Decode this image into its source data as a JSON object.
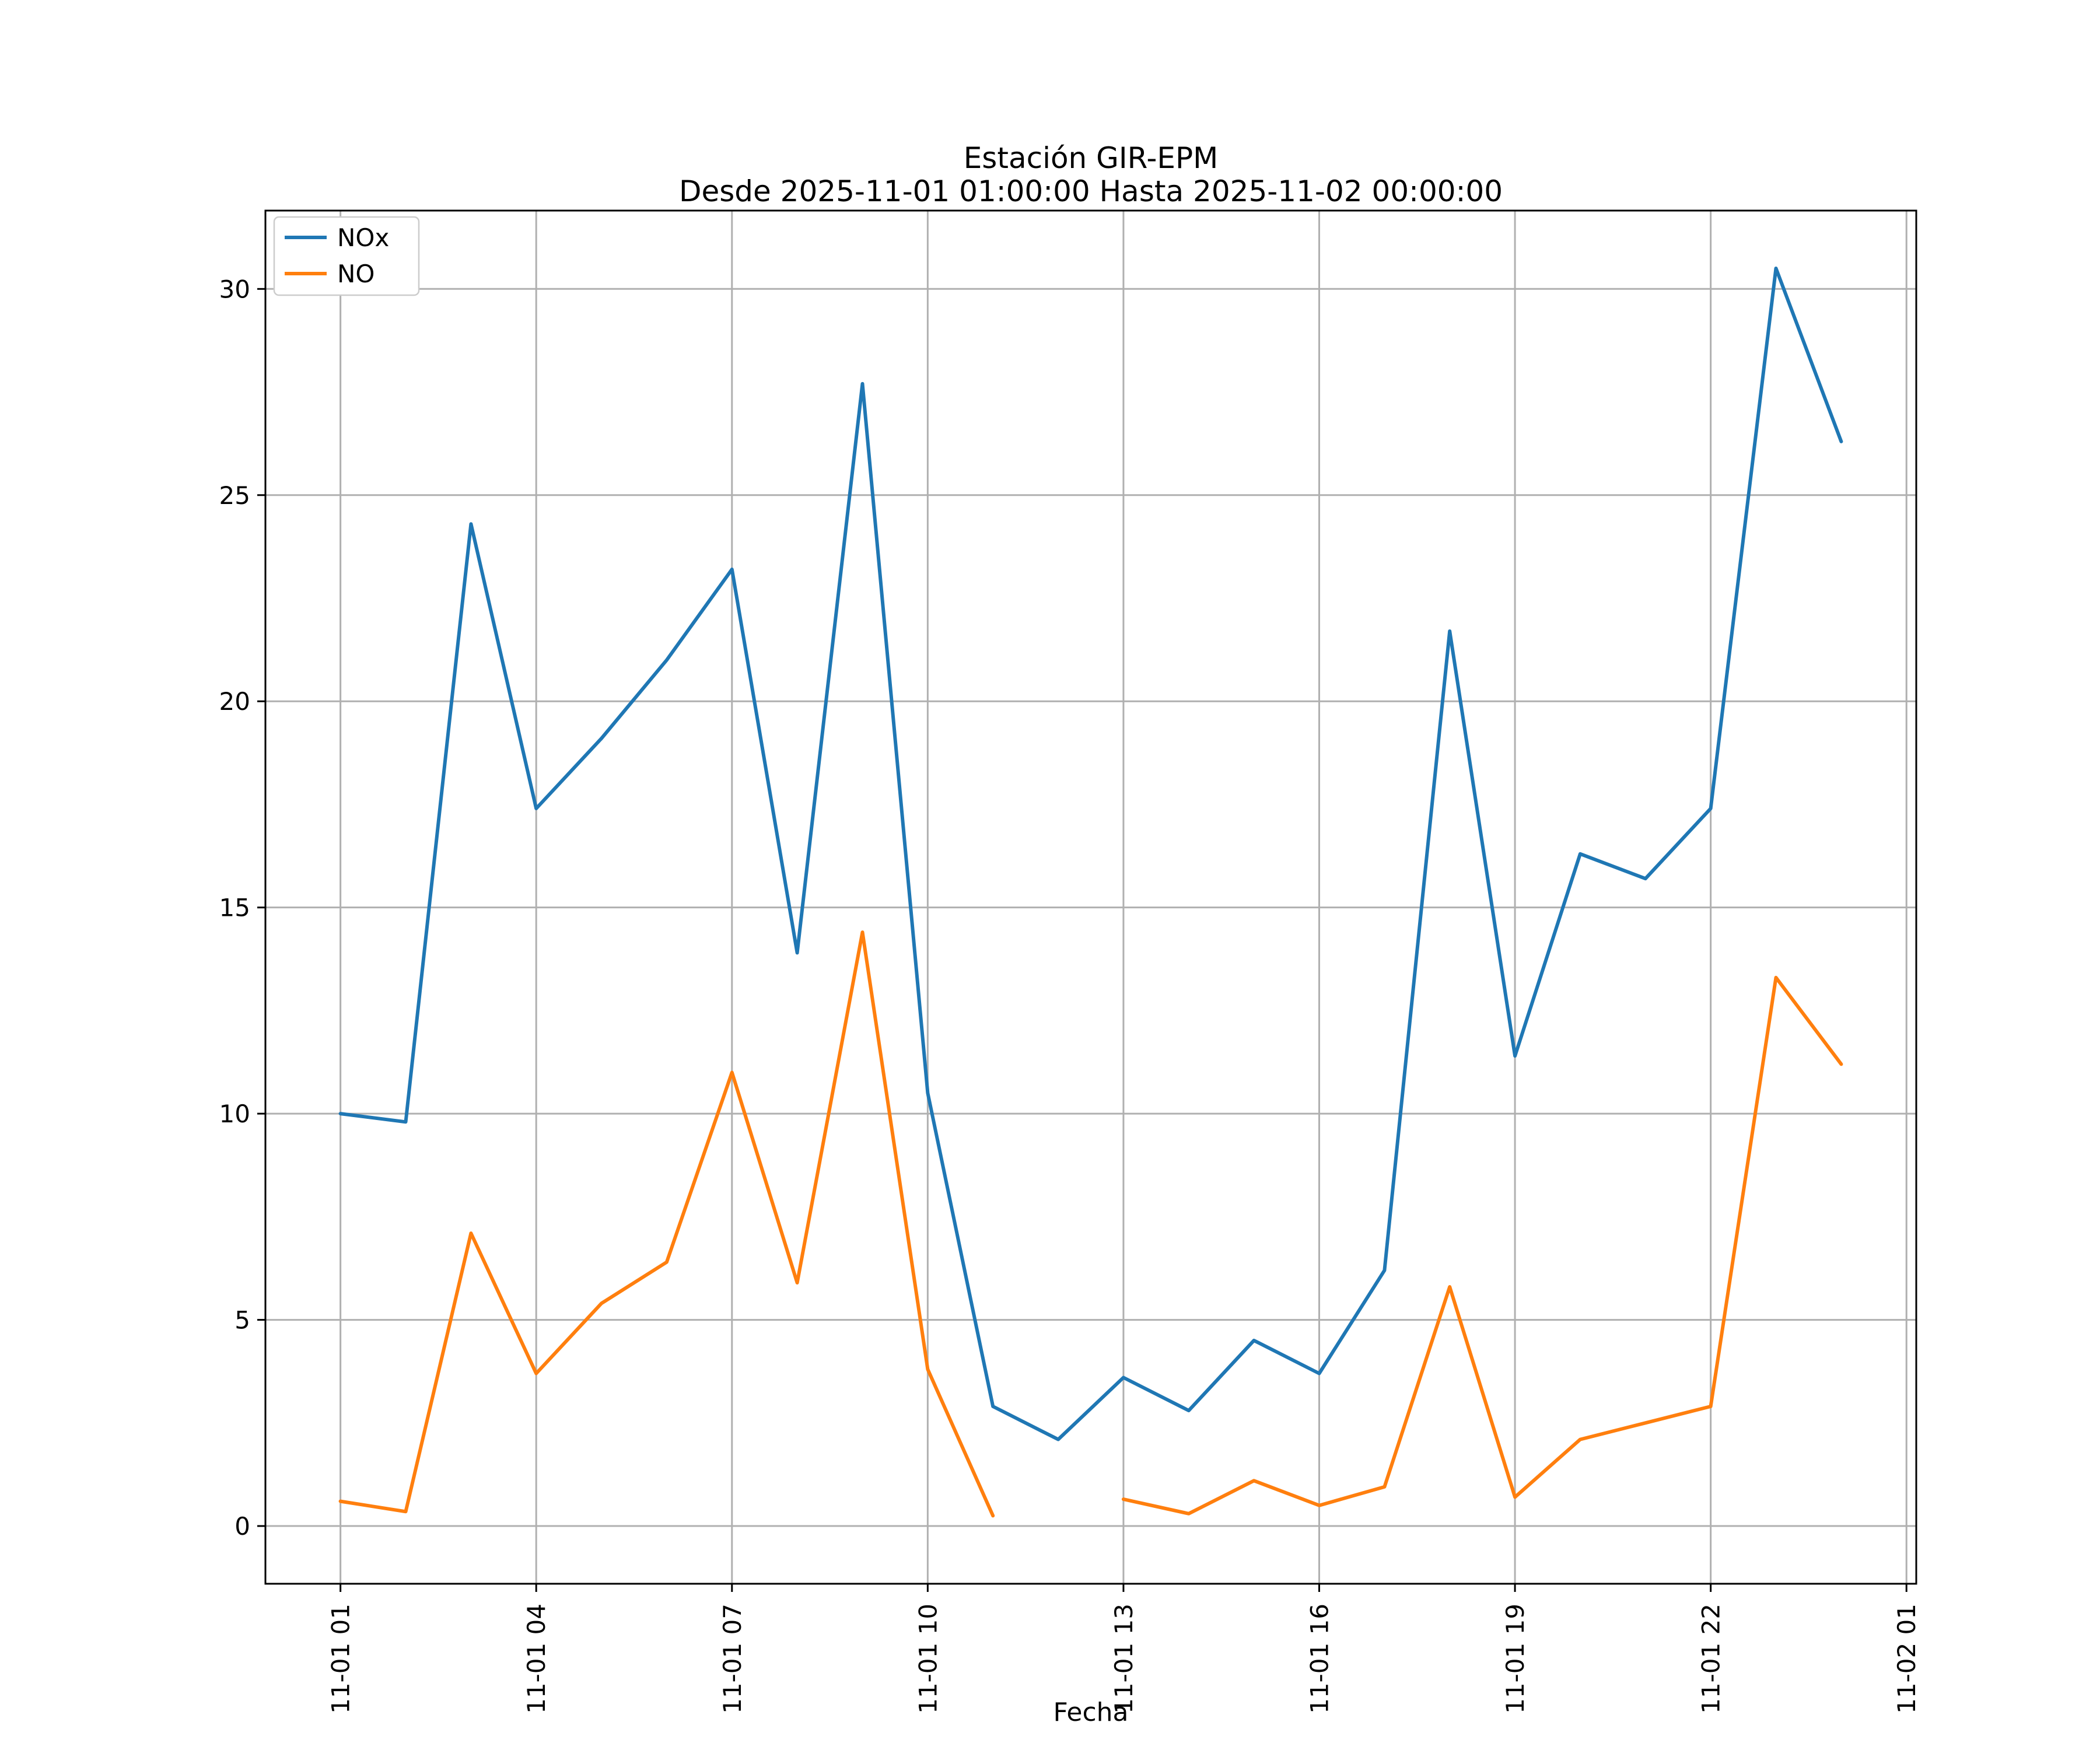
{
  "header": {
    "title": "Estación GIR-EPM",
    "subtitle": "Desde 2025-11-01 01:00:00 Hasta 2025-11-02 00:00:00"
  },
  "colors": {
    "nox": "#1f77b4",
    "no": "#ff7f0e",
    "grid": "#b0b0b0",
    "axis": "#000000",
    "background": "#ffffff",
    "legend_border": "#cccccc"
  },
  "chart_data": {
    "type": "line",
    "title": "Estación GIR-EPM",
    "subtitle": "Desde 2025-11-01 01:00:00 Hasta 2025-11-02 00:00:00",
    "xlabel": "Fecha",
    "ylabel": "",
    "x_hours": [
      1,
      2,
      3,
      4,
      5,
      6,
      7,
      8,
      9,
      10,
      11,
      12,
      13,
      14,
      15,
      16,
      17,
      18,
      19,
      20,
      21,
      22,
      23,
      24
    ],
    "x_tick_hours": [
      1,
      4,
      7,
      10,
      13,
      16,
      19,
      22,
      25
    ],
    "x_tick_labels": [
      "11-01 01",
      "11-01 04",
      "11-01 07",
      "11-01 10",
      "11-01 13",
      "11-01 16",
      "11-01 19",
      "11-01 22",
      "11-02 01"
    ],
    "y_ticks": [
      0,
      5,
      10,
      15,
      20,
      25,
      30
    ],
    "xlim": [
      -0.15,
      25.15
    ],
    "ylim": [
      -1.4,
      31.9
    ],
    "grid": true,
    "legend_position": "upper left",
    "series": [
      {
        "name": "NOx",
        "color": "#1f77b4",
        "values": [
          10.0,
          9.8,
          24.3,
          17.4,
          19.1,
          21.0,
          23.2,
          13.9,
          27.7,
          10.5,
          2.9,
          2.1,
          3.6,
          2.8,
          4.5,
          3.7,
          6.2,
          21.7,
          11.4,
          16.3,
          15.7,
          17.4,
          30.5,
          26.3
        ]
      },
      {
        "name": "NO",
        "color": "#ff7f0e",
        "values": [
          0.6,
          0.35,
          7.1,
          3.7,
          5.4,
          6.4,
          11.0,
          5.9,
          14.4,
          3.8,
          0.25,
          null,
          0.65,
          0.3,
          1.1,
          0.5,
          0.95,
          5.8,
          0.7,
          2.1,
          2.5,
          2.9,
          13.3,
          11.2
        ]
      }
    ]
  }
}
